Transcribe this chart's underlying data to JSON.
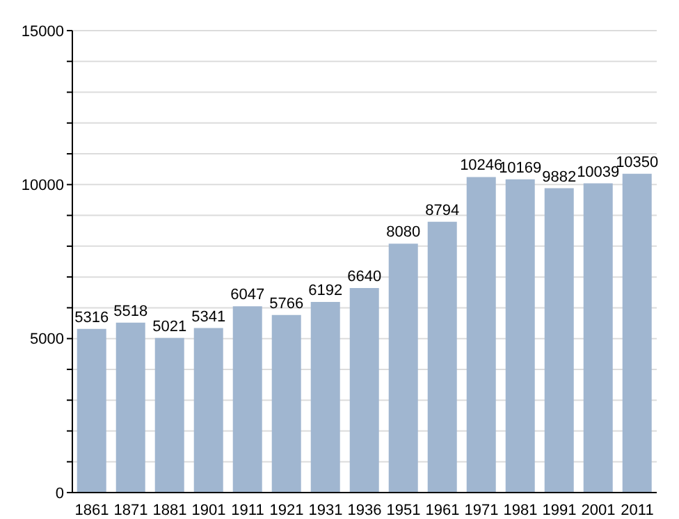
{
  "chart_data": {
    "type": "bar",
    "categories": [
      "1861",
      "1871",
      "1881",
      "1901",
      "1911",
      "1921",
      "1931",
      "1936",
      "1951",
      "1961",
      "1971",
      "1981",
      "1991",
      "2001",
      "2011"
    ],
    "values": [
      5316,
      5518,
      5021,
      5341,
      6047,
      5766,
      6192,
      6640,
      8080,
      8794,
      10246,
      10169,
      9882,
      10039,
      10350
    ],
    "color": "#a0b6d0",
    "ylim": [
      0,
      15000
    ],
    "yticks": [
      0,
      {
        "value": 1000,
        "label": null
      },
      {
        "value": 2000,
        "label": null
      },
      {
        "value": 3000,
        "label": null
      },
      {
        "value": 4000,
        "label": null
      },
      5000,
      {
        "value": 6000,
        "label": null
      },
      {
        "value": 7000,
        "label": null
      },
      {
        "value": 8000,
        "label": null
      },
      {
        "value": 9000,
        "label": null
      },
      10000,
      {
        "value": 11000,
        "label": null
      },
      {
        "value": 12000,
        "label": null
      },
      {
        "value": 13000,
        "label": null
      },
      {
        "value": 14000,
        "label": null
      },
      15000
    ],
    "grid": "y",
    "data_labels": true
  }
}
